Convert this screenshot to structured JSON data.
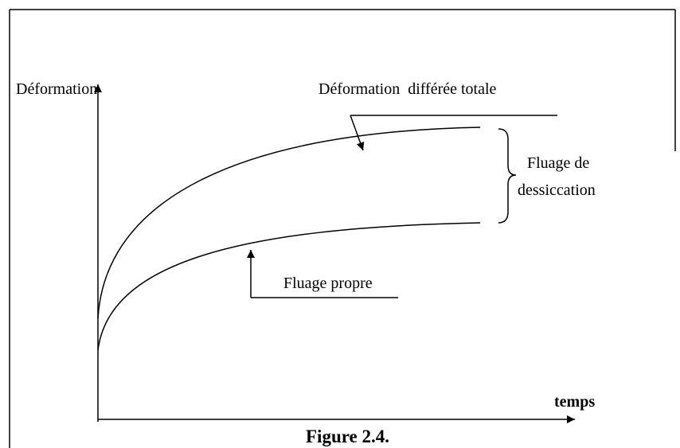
{
  "labels": {
    "y_axis": "Déformation",
    "x_axis": "temps",
    "total": "Déformation  différée totale",
    "drying_1": "Fluage de",
    "drying_2": "dessiccation",
    "basic": "Fluage propre"
  },
  "caption": "Figure 2.4."
}
